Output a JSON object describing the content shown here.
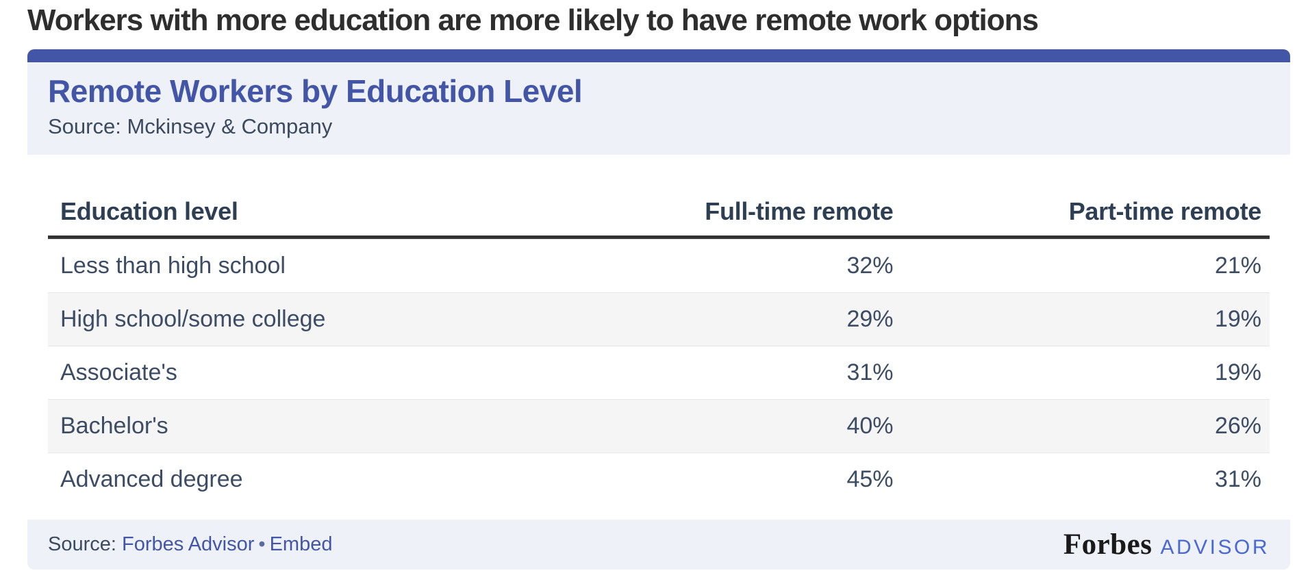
{
  "page_heading": "Workers with more education are more likely to have remote work options",
  "card": {
    "title": "Remote Workers by Education Level",
    "source_note": "Source: Mckinsey & Company"
  },
  "chart_data": {
    "type": "table",
    "title": "Remote Workers by Education Level",
    "source": "Mckinsey & Company",
    "columns": [
      "Education level",
      "Full-time remote",
      "Part-time remote"
    ],
    "rows": [
      {
        "label": "Less than high school",
        "full_time": "32%",
        "part_time": "21%",
        "full_time_pct": 32,
        "part_time_pct": 21
      },
      {
        "label": "High school/some college",
        "full_time": "29%",
        "part_time": "19%",
        "full_time_pct": 29,
        "part_time_pct": 19
      },
      {
        "label": "Associate's",
        "full_time": "31%",
        "part_time": "19%",
        "full_time_pct": 31,
        "part_time_pct": 19
      },
      {
        "label": "Bachelor's",
        "full_time": "40%",
        "part_time": "26%",
        "full_time_pct": 40,
        "part_time_pct": 26
      },
      {
        "label": "Advanced degree",
        "full_time": "45%",
        "part_time": "31%",
        "full_time_pct": 45,
        "part_time_pct": 31
      }
    ]
  },
  "footer": {
    "source_label": "Source:",
    "source_link": "Forbes Advisor",
    "separator": "•",
    "embed_link": "Embed",
    "logo_forbes": "Forbes",
    "logo_advisor": "ADVISOR"
  },
  "colors": {
    "accent_blue": "#4355A6",
    "panel_bg": "#EEF2F8",
    "heading_text": "#2E2E2E",
    "header_text": "#2E3F54",
    "table_text": "#3C4C64",
    "stripe_bg": "#F5F5F5",
    "rule_dark": "#333333",
    "link_blue": "#4355A8",
    "advisor_blue": "#4A67D6",
    "forbes_black": "#1A1A1A"
  }
}
